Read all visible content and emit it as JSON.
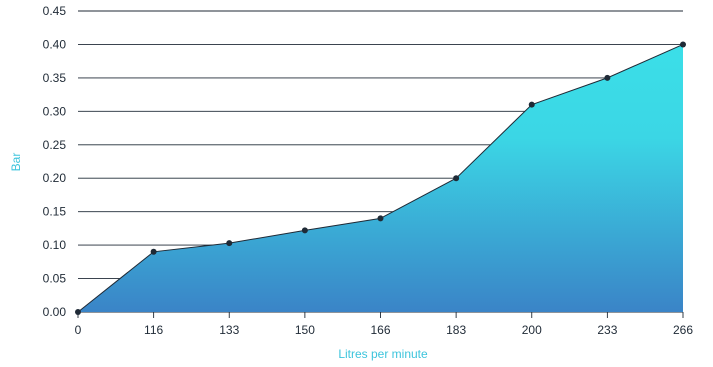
{
  "chart_data": {
    "type": "area",
    "title": "",
    "xlabel": "Litres per minute",
    "ylabel": "Bar",
    "categories": [
      "0",
      "116",
      "133",
      "150",
      "166",
      "183",
      "200",
      "233",
      "266"
    ],
    "series": [
      {
        "values": [
          0.0,
          0.09,
          0.103,
          0.122,
          0.14,
          0.2,
          0.31,
          0.35,
          0.4
        ]
      }
    ],
    "ylim": [
      0,
      0.45
    ],
    "yticks": [
      "0.00",
      "0.05",
      "0.10",
      "0.15",
      "0.20",
      "0.25",
      "0.30",
      "0.35",
      "0.40",
      "0.45"
    ],
    "grid": "horizontal",
    "colors": {
      "fill_top": "#3bdfe8",
      "fill_bottom": "#3a84c7",
      "line": "#1f2a36",
      "grid": "#1f2a36",
      "axis_title": "#3cc4dc"
    }
  }
}
